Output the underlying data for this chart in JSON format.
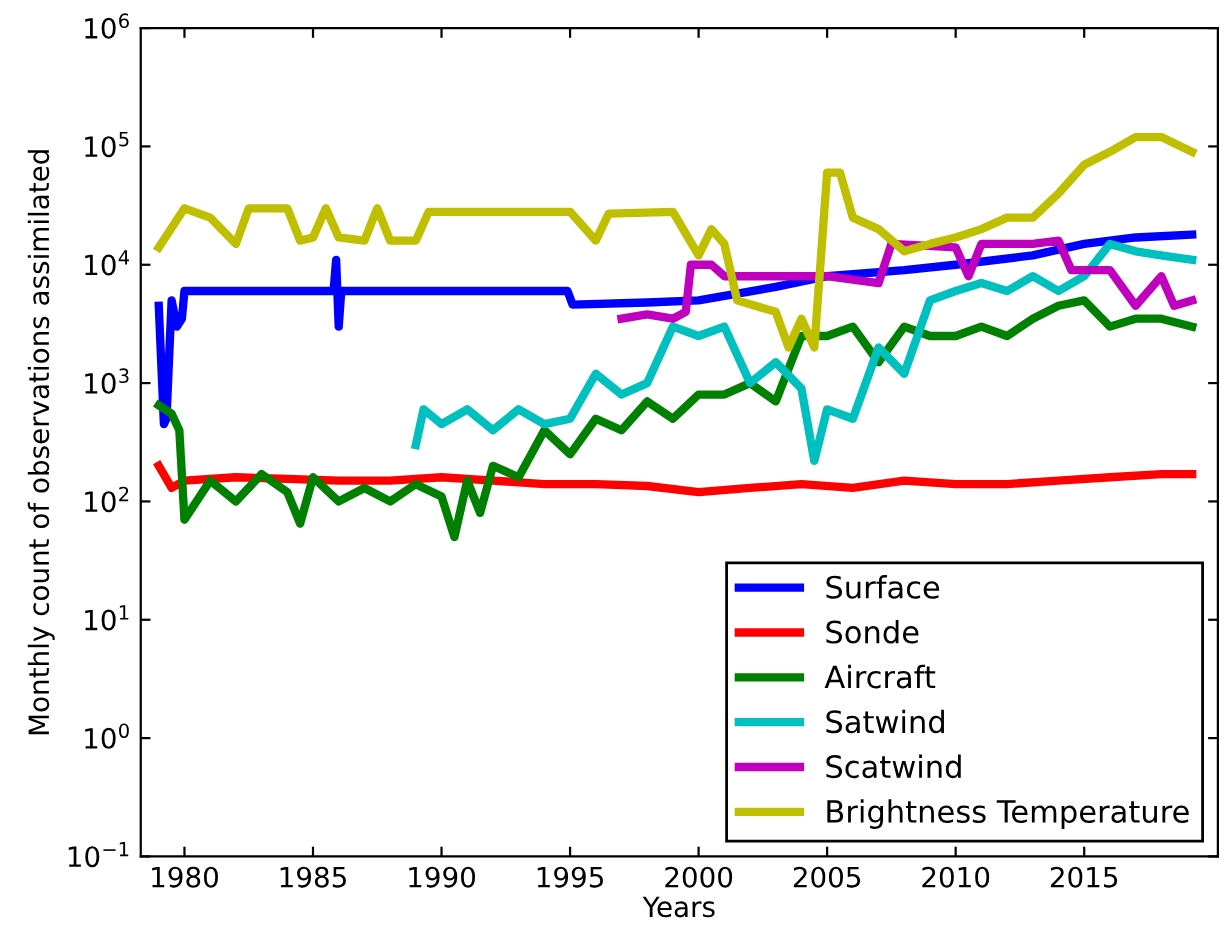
{
  "chart_data": {
    "type": "line",
    "xlabel": "Years",
    "ylabel": "Monthly count of observations assimilated",
    "log": "y",
    "xlim": [
      1978.3,
      2020.2
    ],
    "xticks": [
      1980,
      1985,
      1990,
      1995,
      2000,
      2005,
      2010,
      2015
    ],
    "ylim": [
      0.1,
      1000000
    ],
    "yticks": [
      {
        "value": 0.1,
        "label": "10$^{−1}$"
      },
      {
        "value": 1,
        "label": "10$^{0}$"
      },
      {
        "value": 10,
        "label": "10$^{1}$"
      },
      {
        "value": 100,
        "label": "10$^{2}$"
      },
      {
        "value": 1000,
        "label": "10$^{3}$"
      },
      {
        "value": 10000,
        "label": "10$^{4}$"
      },
      {
        "value": 100000,
        "label": "10$^{5}$"
      },
      {
        "value": 1000000,
        "label": "10$^{6}$"
      }
    ],
    "grid": false,
    "legend": "bottom right",
    "line_style": "solid",
    "marker": "none",
    "series": [
      {
        "name": "Surface",
        "color": "#0000ff",
        "x": [
          1979,
          1979.2,
          1979.3,
          1979.5,
          1979.7,
          1979.9,
          1980,
          1983,
          1985.8,
          1985.9,
          1986,
          1986.1,
          1986.2,
          1990,
          1994.9,
          1995.1,
          1998,
          2000,
          2003,
          2005,
          2008,
          2010,
          2013,
          2015,
          2017,
          2019.2
        ],
        "values": [
          4500,
          450,
          500,
          5000,
          3000,
          3500,
          6000,
          6000,
          6000,
          11000,
          3000,
          6000,
          6000,
          6000,
          6000,
          4600,
          4800,
          5000,
          6500,
          8000,
          9000,
          10000,
          12000,
          15000,
          17000,
          18000
        ]
      },
      {
        "name": "Sonde",
        "color": "#ff0000",
        "x": [
          1979,
          1979.5,
          1980,
          1982,
          1984,
          1986,
          1988,
          1990,
          1992,
          1994,
          1996,
          1998,
          2000,
          2002,
          2004,
          2006,
          2008,
          2010,
          2012,
          2014,
          2016,
          2018,
          2019.2
        ],
        "values": [
          200,
          130,
          150,
          160,
          155,
          150,
          150,
          160,
          150,
          140,
          140,
          135,
          120,
          130,
          140,
          130,
          150,
          140,
          140,
          150,
          160,
          170,
          170
        ]
      },
      {
        "name": "Aircraft",
        "color": "#008000",
        "x": [
          1979,
          1979.5,
          1979.8,
          1980,
          1981,
          1982,
          1983,
          1984,
          1984.5,
          1985,
          1986,
          1987,
          1988,
          1989,
          1990,
          1990.5,
          1991,
          1991.5,
          1992,
          1993,
          1994,
          1995,
          1996,
          1997,
          1998,
          1999,
          2000,
          2001,
          2002,
          2003,
          2004,
          2005,
          2006,
          2007,
          2008,
          2009,
          2010,
          2011,
          2012,
          2013,
          2014,
          2015,
          2016,
          2017,
          2018,
          2019.2
        ],
        "values": [
          650,
          550,
          400,
          70,
          150,
          100,
          170,
          120,
          65,
          160,
          100,
          130,
          100,
          140,
          110,
          50,
          150,
          80,
          200,
          160,
          400,
          250,
          500,
          400,
          700,
          500,
          800,
          800,
          1000,
          700,
          2500,
          2500,
          3000,
          1500,
          3000,
          2500,
          2500,
          3000,
          2500,
          3500,
          4500,
          5000,
          3000,
          3500,
          3500,
          3000
        ]
      },
      {
        "name": "Satwind",
        "color": "#00bfbf",
        "x": [
          1989,
          1989.3,
          1990,
          1991,
          1992,
          1993,
          1994,
          1995,
          1996,
          1997,
          1998,
          1999,
          2000,
          2001,
          2002,
          2003,
          2004,
          2004.5,
          2005,
          2006,
          2007,
          2008,
          2009,
          2010,
          2011,
          2012,
          2013,
          2014,
          2015,
          2016,
          2017,
          2018,
          2019.2
        ],
        "values": [
          300,
          600,
          450,
          600,
          400,
          600,
          450,
          500,
          1200,
          800,
          1000,
          3000,
          2500,
          3000,
          1000,
          1500,
          900,
          220,
          600,
          500,
          2000,
          1200,
          5000,
          6000,
          7000,
          6000,
          8000,
          6000,
          8000,
          15000,
          13000,
          12000,
          11000
        ]
      },
      {
        "name": "Scatwind",
        "color": "#bf00bf",
        "x": [
          1997,
          1998,
          1999,
          1999.5,
          1999.7,
          2000.5,
          2001,
          2003,
          2005,
          2007,
          2007.5,
          2010,
          2010.5,
          2011,
          2013,
          2014,
          2014.5,
          2016,
          2017,
          2018,
          2018.5,
          2019.2
        ],
        "values": [
          3500,
          3800,
          3500,
          4000,
          10000,
          10000,
          8000,
          8000,
          8000,
          7000,
          15000,
          14000,
          8000,
          15000,
          15000,
          16000,
          9000,
          9000,
          4500,
          8000,
          4500,
          5000
        ]
      },
      {
        "name": "Brightness Temperature",
        "color": "#bfbf00",
        "x": [
          1979,
          1980,
          1981,
          1982,
          1982.5,
          1984,
          1984.5,
          1985,
          1985.5,
          1986,
          1987,
          1987.5,
          1988,
          1989,
          1989.5,
          1995,
          1996,
          1996.5,
          1999,
          2000,
          2000.5,
          2001,
          2001.5,
          2003,
          2003.5,
          2004,
          2004.5,
          2005,
          2005.5,
          2006,
          2007,
          2008,
          2009,
          2010,
          2011,
          2012,
          2013,
          2014,
          2015,
          2016,
          2017,
          2018,
          2019.2
        ],
        "values": [
          14000,
          30000,
          25000,
          15000,
          30000,
          30000,
          16000,
          17000,
          30000,
          17000,
          16000,
          30000,
          16000,
          16000,
          28000,
          28000,
          16000,
          27000,
          28000,
          12000,
          20000,
          15000,
          5000,
          4000,
          2000,
          3500,
          2000,
          60000,
          60000,
          25000,
          20000,
          13000,
          15000,
          17000,
          20000,
          25000,
          25000,
          40000,
          70000,
          90000,
          120000,
          120000,
          90000
        ]
      }
    ]
  }
}
